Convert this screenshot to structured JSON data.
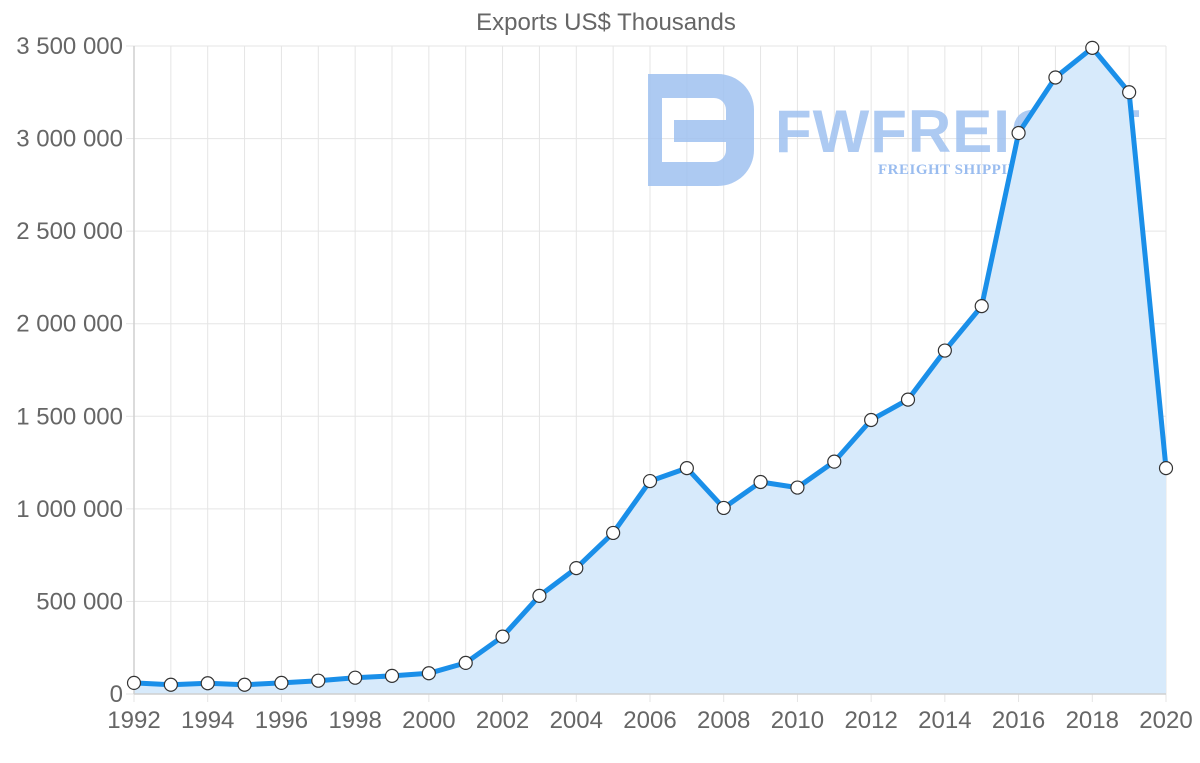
{
  "colors": {
    "line": "#1a8fe9",
    "fill": "#d7eafb",
    "point_fill": "#ffffff",
    "point_stroke": "#333333",
    "watermark": "#9fc1f0"
  },
  "watermark": {
    "brand": "FWFREIGHT",
    "tagline": "FREIGHT SHIPPING",
    "icon": "fwfreight-logo-icon"
  },
  "chart_data": {
    "type": "area",
    "title": "Exports US$ Thousands",
    "xlabel": "",
    "ylabel": "",
    "ylim": [
      0,
      3500000
    ],
    "yticks": [
      0,
      500000,
      1000000,
      1500000,
      2000000,
      2500000,
      3000000,
      3500000
    ],
    "ytick_labels": [
      "0",
      "500 000",
      "1 000 000",
      "1 500 000",
      "2 000 000",
      "2 500 000",
      "3 000 000",
      "3 500 000"
    ],
    "xlim": [
      1992,
      2020
    ],
    "xtick_labels": [
      "1992",
      "1994",
      "1996",
      "1998",
      "2000",
      "2002",
      "2004",
      "2006",
      "2008",
      "2010",
      "2012",
      "2014",
      "2016",
      "2018",
      "2020"
    ],
    "grid": true,
    "series": [
      {
        "name": "Exports US$ Thousands",
        "x": [
          1992,
          1993,
          1994,
          1995,
          1996,
          1997,
          1998,
          1999,
          2000,
          2001,
          2002,
          2003,
          2004,
          2005,
          2006,
          2007,
          2008,
          2009,
          2010,
          2011,
          2012,
          2013,
          2014,
          2015,
          2016,
          2017,
          2018,
          2019,
          2020
        ],
        "values": [
          60000,
          50000,
          58000,
          50000,
          60000,
          72000,
          88000,
          98000,
          112000,
          168000,
          310000,
          530000,
          680000,
          870000,
          1150000,
          1220000,
          1005000,
          1145000,
          1115000,
          1255000,
          1480000,
          1590000,
          1855000,
          2095000,
          3030000,
          3330000,
          3490000,
          3250000,
          1220000
        ]
      }
    ]
  }
}
